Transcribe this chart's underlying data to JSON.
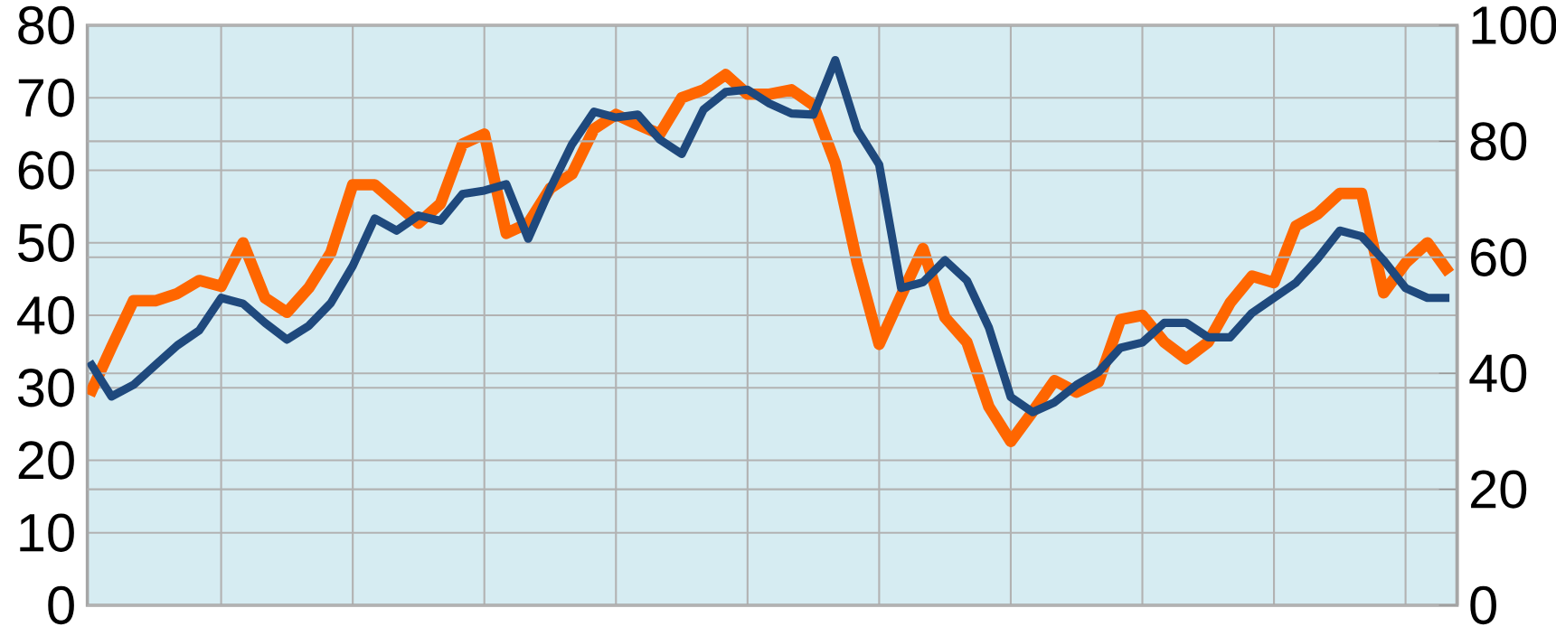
{
  "chart_data": {
    "type": "line",
    "categories": [
      null,
      null,
      null,
      null,
      null,
      null,
      null,
      null,
      null,
      null,
      null,
      null,
      null,
      null,
      null,
      null,
      null,
      null,
      null,
      null,
      null,
      null,
      null,
      null,
      null,
      null,
      null,
      null,
      null,
      null,
      null,
      null,
      null,
      null,
      null,
      null,
      null,
      null,
      null,
      null,
      null,
      null,
      null,
      null,
      null,
      null,
      null,
      null,
      null,
      null,
      null,
      null,
      null,
      null,
      null,
      null,
      null,
      null,
      null,
      null,
      null,
      null,
      null
    ],
    "series": [
      {
        "color": "#ff6600",
        "axis": "y",
        "values": [
          29,
          35.6,
          42,
          42,
          43,
          44.8,
          44,
          50,
          42.4,
          40.4,
          43.8,
          48.6,
          58,
          58,
          55.4,
          52.7,
          55.4,
          63.6,
          65,
          51.3,
          52.7,
          57.5,
          59.5,
          65.7,
          67.7,
          66.3,
          65,
          70,
          71.1,
          73.2,
          70.5,
          70.5,
          71.1,
          69,
          61,
          47.2,
          36,
          42.7,
          49.2,
          39.7,
          36.3,
          27.4,
          22.6,
          26.7,
          31,
          29.4,
          30.8,
          39.4,
          40,
          36.3,
          34,
          36.3,
          41.7,
          45.4,
          44.5,
          52.3,
          54,
          56.8,
          56.8,
          43.1,
          47.2,
          50,
          45.8
        ]
      },
      {
        "color": "#1f497d",
        "axis": "y2",
        "values": [
          42,
          36,
          38,
          41.4,
          44.8,
          47.4,
          53,
          52,
          48.7,
          45.8,
          48.2,
          52.1,
          58.5,
          66.7,
          64.6,
          67.2,
          66.3,
          70.9,
          71.5,
          72.6,
          63.2,
          71.8,
          79.5,
          85.1,
          84.1,
          84.6,
          80.3,
          77.8,
          85.5,
          88.5,
          88.9,
          86.5,
          84.8,
          84.6,
          94,
          82,
          76,
          54.7,
          55.7,
          59.5,
          56,
          47.9,
          35.9,
          33.3,
          35,
          38,
          40.2,
          44.4,
          45.3,
          48.7,
          48.7,
          46.2,
          46.2,
          50.4,
          53,
          55.6,
          59.8,
          64.6,
          63.6,
          59.5,
          54.7,
          53,
          53
        ]
      }
    ],
    "ylim": [
      0,
      80
    ],
    "yticks": [
      0,
      10,
      20,
      30,
      40,
      50,
      60,
      70,
      80
    ],
    "y2lim": [
      0,
      100
    ],
    "y2ticks": [
      0,
      20,
      40,
      60,
      80,
      100
    ],
    "grid": true,
    "marker": "none",
    "line_style": "solid"
  }
}
